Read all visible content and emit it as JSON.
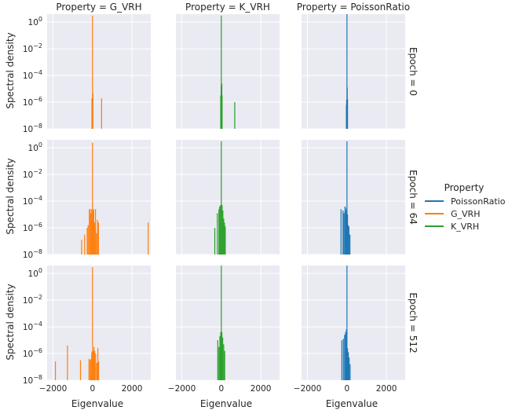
{
  "chart_data": {
    "type": "bar",
    "title": "",
    "xlabel": "Eigenvalue",
    "ylabel": "Spectral density",
    "yscale": "log",
    "xlim": [
      -2300,
      2950
    ],
    "ylim_exp": [
      -8,
      0.6
    ],
    "x_ticks": [
      -2000,
      0,
      2000
    ],
    "x_tick_labels": [
      "−2000",
      "0",
      "2000"
    ],
    "y_ticks_exp": [
      0,
      -2,
      -4,
      -6,
      -8
    ],
    "y_tick_labels": [
      {
        "base": "10",
        "exp": "0"
      },
      {
        "base": "10",
        "exp": "−2"
      },
      {
        "base": "10",
        "exp": "−4"
      },
      {
        "base": "10",
        "exp": "−6"
      },
      {
        "base": "10",
        "exp": "−8"
      }
    ],
    "columns": [
      "Property = G_VRH",
      "Property = K_VRH",
      "Property = PoissonRatio"
    ],
    "rows": [
      "Epoch = 0",
      "Epoch = 64",
      "Epoch = 512"
    ],
    "series_colors": {
      "PoissonRatio": "#1f77b4",
      "G_VRH": "#ff7f0e",
      "K_VRH": "#2ca02c"
    },
    "legend": {
      "title": "Property",
      "position": "right",
      "entries": [
        "PoissonRatio",
        "G_VRH",
        "K_VRH"
      ]
    },
    "panels": [
      {
        "row": 0,
        "col": 0,
        "series": "G_VRH",
        "bins": [
          [
            -30,
            -5.7
          ],
          [
            0,
            0.5
          ],
          [
            20,
            -5.3
          ],
          [
            460,
            -5.7
          ]
        ]
      },
      {
        "row": 0,
        "col": 1,
        "series": "K_VRH",
        "bins": [
          [
            -30,
            -5.5
          ],
          [
            -10,
            -4.8
          ],
          [
            0,
            0.5
          ],
          [
            25,
            -4.6
          ],
          [
            40,
            -5.5
          ],
          [
            680,
            -6.0
          ]
        ]
      },
      {
        "row": 0,
        "col": 2,
        "series": "PoissonRatio",
        "bins": [
          [
            -30,
            -6.2
          ],
          [
            -15,
            -5.8
          ],
          [
            0,
            0.9
          ],
          [
            15,
            -4.9
          ],
          [
            30,
            -5.8
          ]
        ]
      },
      {
        "row": 1,
        "col": 0,
        "series": "G_VRH",
        "bins": [
          [
            -550,
            -6.9
          ],
          [
            -400,
            -6.5
          ],
          [
            -270,
            -6.0
          ],
          [
            -220,
            -5.8
          ],
          [
            -160,
            -4.6
          ],
          [
            -120,
            -4.6
          ],
          [
            -80,
            -4.9
          ],
          [
            -40,
            -4.6
          ],
          [
            0,
            0.4
          ],
          [
            30,
            -4.7
          ],
          [
            60,
            -4.6
          ],
          [
            100,
            -5.6
          ],
          [
            150,
            -4.6
          ],
          [
            200,
            -6.4
          ],
          [
            250,
            -5.4
          ],
          [
            300,
            -5.6
          ],
          [
            2820,
            -5.6
          ]
        ]
      },
      {
        "row": 1,
        "col": 1,
        "series": "K_VRH",
        "bins": [
          [
            -330,
            -6.0
          ],
          [
            -200,
            -4.9
          ],
          [
            -120,
            -4.6
          ],
          [
            -80,
            -4.4
          ],
          [
            -40,
            -4.3
          ],
          [
            0,
            0.5
          ],
          [
            40,
            -4.3
          ],
          [
            80,
            -4.7
          ],
          [
            120,
            -5.3
          ],
          [
            160,
            -5.6
          ],
          [
            200,
            -5.9
          ]
        ]
      },
      {
        "row": 1,
        "col": 2,
        "series": "PoissonRatio",
        "bins": [
          [
            -300,
            -4.6
          ],
          [
            -200,
            -4.7
          ],
          [
            -150,
            -4.9
          ],
          [
            -100,
            -4.4
          ],
          [
            -60,
            -4.7
          ],
          [
            -30,
            -4.5
          ],
          [
            0,
            0.5
          ],
          [
            30,
            -5.0
          ],
          [
            60,
            -5.8
          ],
          [
            100,
            -5.9
          ],
          [
            150,
            -6.5
          ]
        ]
      },
      {
        "row": 2,
        "col": 0,
        "series": "G_VRH",
        "bins": [
          [
            -1880,
            -6.6
          ],
          [
            -1270,
            -5.4
          ],
          [
            -610,
            -6.5
          ],
          [
            -180,
            -6.4
          ],
          [
            -120,
            -6.5
          ],
          [
            -80,
            -6.4
          ],
          [
            -40,
            -5.9
          ],
          [
            0,
            0.5
          ],
          [
            30,
            -5.8
          ],
          [
            70,
            -5.5
          ],
          [
            110,
            -5.8
          ],
          [
            160,
            -6.0
          ],
          [
            220,
            -6.7
          ],
          [
            270,
            -5.6
          ],
          [
            310,
            -6.6
          ]
        ]
      },
      {
        "row": 2,
        "col": 1,
        "series": "K_VRH",
        "bins": [
          [
            -180,
            -5.0
          ],
          [
            -120,
            -5.5
          ],
          [
            -70,
            -4.7
          ],
          [
            -30,
            -4.4
          ],
          [
            0,
            0.6
          ],
          [
            30,
            -4.4
          ],
          [
            70,
            -4.8
          ],
          [
            120,
            -5.3
          ],
          [
            170,
            -5.8
          ]
        ]
      },
      {
        "row": 2,
        "col": 2,
        "series": "PoissonRatio",
        "bins": [
          [
            -260,
            -5.0
          ],
          [
            -180,
            -4.9
          ],
          [
            -120,
            -4.6
          ],
          [
            -70,
            -4.4
          ],
          [
            -30,
            -4.2
          ],
          [
            0,
            0.6
          ],
          [
            30,
            -5.6
          ],
          [
            70,
            -5.9
          ],
          [
            110,
            -6.3
          ],
          [
            160,
            -6.8
          ]
        ]
      }
    ]
  }
}
